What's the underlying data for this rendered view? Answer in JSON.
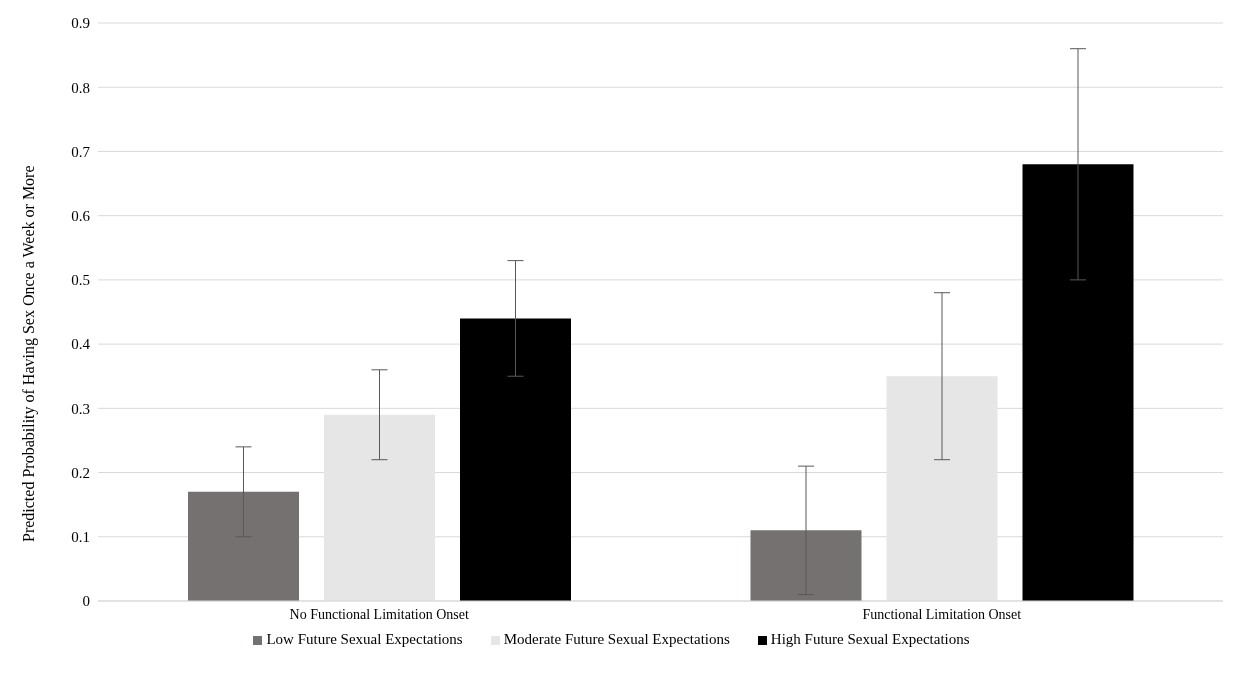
{
  "chart_data": {
    "type": "bar",
    "ylabel": "Predicted Probability of Having Sex Once a Week or More",
    "categories": [
      "No Functional Limitation Onset",
      "Functional Limitation Onset"
    ],
    "series": [
      {
        "name": "Low Future Sexual Expectations",
        "color": "#767171",
        "values": [
          0.17,
          0.11
        ],
        "errors": [
          [
            0.1,
            0.24
          ],
          [
            0.01,
            0.21
          ]
        ]
      },
      {
        "name": "Moderate Future Sexual Expectations",
        "color": "#e7e6e6",
        "values": [
          0.29,
          0.35
        ],
        "errors": [
          [
            0.22,
            0.36
          ],
          [
            0.22,
            0.48
          ]
        ]
      },
      {
        "name": "High Future Sexual Expectations",
        "color": "#000000",
        "values": [
          0.44,
          0.68
        ],
        "errors": [
          [
            0.35,
            0.53
          ],
          [
            0.5,
            0.86
          ]
        ]
      }
    ],
    "ylim": [
      0,
      0.9
    ],
    "yticks": [
      0,
      0.1,
      0.2,
      0.3,
      0.4,
      0.5,
      0.6,
      0.7,
      0.8,
      0.9
    ],
    "grid": "y",
    "legend": "bottom"
  }
}
